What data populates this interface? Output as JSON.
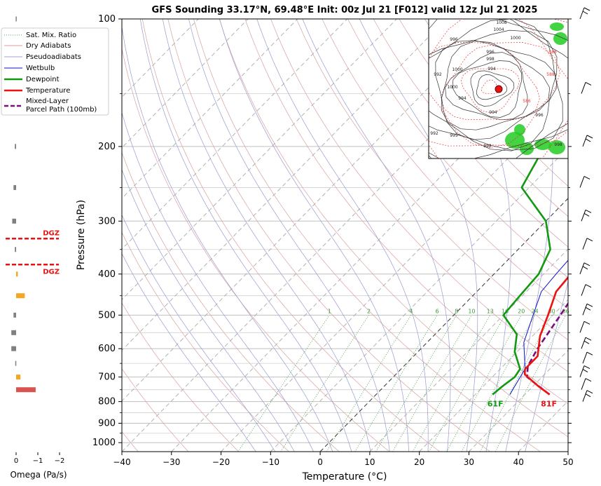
{
  "title": "GFS Sounding 33.17°N, 69.48°E Init: 00z Jul 21 [F012] valid 12z Jul 21 2025",
  "chart_data": {
    "type": "line",
    "title": "GFS Sounding 33.17°N, 69.48°E Init: 00z Jul 21 [F012] valid 12z Jul 21 2025",
    "xlabel": "Temperature (°C)",
    "ylabel": "Pressure (hPa)",
    "xlim": [
      -40,
      50
    ],
    "ylim": [
      1050,
      100
    ],
    "y_scale": "log",
    "grid": true,
    "x_ticks": [
      "−40",
      "−30",
      "−20",
      "−10",
      "0",
      "10",
      "20",
      "30",
      "40",
      "50"
    ],
    "y_ticks": [
      "100",
      "200",
      "300",
      "400",
      "500",
      "600",
      "700",
      "800",
      "900",
      "1000"
    ],
    "legend": {
      "position": "top-left",
      "entries": [
        "Sat. Mix. Ratio",
        "Dry Adiabats",
        "Pseudoadiabats",
        "Wetbulb",
        "Dewpoint",
        "Temperature",
        "Mixed-Layer",
        "Parcel Path (100mb)"
      ]
    },
    "mixing_ratio_labels": [
      "1",
      "2",
      "4",
      "6",
      "8",
      "10",
      "13",
      "16",
      "20",
      "24",
      "30",
      "36"
    ],
    "mixing_ratio_values": [
      1,
      2,
      4,
      6,
      8,
      10,
      13,
      16,
      20,
      24,
      30,
      36
    ],
    "surface_temperature_label": "81F",
    "surface_dewpoint_label": "61F",
    "colors": {
      "temperature": "#ee1111",
      "dewpoint": "#119911",
      "wetbulb": "#1111cc",
      "parcel": "#7a0f7a",
      "dgz": "#ee1111",
      "omega_gray": "#808080",
      "omega_orange": "#f5a623",
      "omega_red": "#d9534f"
    },
    "series": [
      {
        "name": "Temperature",
        "points": [
          [
            35.0,
            770
          ],
          [
            31.0,
            735
          ],
          [
            26.0,
            690
          ],
          [
            25.0,
            670
          ],
          [
            25.0,
            625
          ],
          [
            21.5,
            560
          ],
          [
            19.0,
            500
          ],
          [
            16.0,
            440
          ],
          [
            15.5,
            400
          ],
          [
            14.5,
            350
          ],
          [
            12.0,
            300
          ],
          [
            7.0,
            250
          ],
          [
            -0.5,
            200
          ],
          [
            -7.5,
            160
          ],
          [
            -10.5,
            140
          ],
          [
            -14.5,
            120
          ],
          [
            -17.0,
            110
          ],
          [
            -19.0,
            100
          ]
        ]
      },
      {
        "name": "Dewpoint",
        "points": [
          [
            23.5,
            770
          ],
          [
            23.8,
            740
          ],
          [
            24.5,
            700
          ],
          [
            24.0,
            670
          ],
          [
            19.5,
            610
          ],
          [
            16.5,
            555
          ],
          [
            10.0,
            500
          ],
          [
            9.5,
            450
          ],
          [
            9.0,
            400
          ],
          [
            6.5,
            350
          ],
          [
            0.0,
            300
          ],
          [
            -11.5,
            250
          ],
          [
            -15.0,
            200
          ],
          [
            -14.0,
            160
          ],
          [
            -14.0,
            150
          ],
          [
            -13.5,
            130
          ],
          [
            -12.5,
            120
          ],
          [
            -12.5,
            100
          ]
        ]
      },
      {
        "name": "Wetbulb",
        "points": [
          [
            27.0,
            770
          ],
          [
            26.5,
            745
          ],
          [
            25.0,
            670
          ],
          [
            19.5,
            580
          ],
          [
            16.0,
            500
          ],
          [
            13.0,
            440
          ],
          [
            12.5,
            400
          ],
          [
            12.0,
            350
          ],
          [
            10.0,
            300
          ],
          [
            4.5,
            250
          ],
          [
            -2.5,
            200
          ],
          [
            -8.0,
            160
          ]
        ]
      },
      {
        "name": "Mixed-Layer Parcel Path (100mb)",
        "points": [
          [
            35.0,
            770
          ],
          [
            30.5,
            730
          ],
          [
            27.0,
            700
          ],
          [
            25.0,
            660
          ],
          [
            23.5,
            600
          ],
          [
            21.5,
            500
          ],
          [
            20.0,
            440
          ],
          [
            18.5,
            400
          ],
          [
            16.0,
            350
          ],
          [
            13.5,
            300
          ],
          [
            10.0,
            250
          ],
          [
            4.0,
            200
          ],
          [
            -2.0,
            160
          ],
          [
            -5.0,
            140
          ],
          [
            -10.0,
            120
          ],
          [
            -12.0,
            110
          ],
          [
            -15.0,
            100
          ]
        ]
      }
    ],
    "omega_panel": {
      "xlabel": "Omega (Pa/s)",
      "x_ticks": [
        "0",
        "−1",
        "−2"
      ],
      "dgz_label": "DGZ",
      "dgz_levels_hpa": [
        330,
        380
      ],
      "bars": [
        {
          "p": 100,
          "value": 0.02,
          "color": "gray"
        },
        {
          "p": 200,
          "value": 0.06,
          "color": "gray"
        },
        {
          "p": 250,
          "value": 0.12,
          "color": "gray"
        },
        {
          "p": 300,
          "value": 0.18,
          "color": "gray"
        },
        {
          "p": 350,
          "value": 0.06,
          "color": "gray"
        },
        {
          "p": 400,
          "value": -0.08,
          "color": "orange"
        },
        {
          "p": 450,
          "value": -0.4,
          "color": "orange"
        },
        {
          "p": 500,
          "value": 0.12,
          "color": "gray"
        },
        {
          "p": 550,
          "value": 0.22,
          "color": "gray"
        },
        {
          "p": 600,
          "value": 0.22,
          "color": "gray"
        },
        {
          "p": 650,
          "value": 0.04,
          "color": "gray"
        },
        {
          "p": 700,
          "value": -0.2,
          "color": "orange"
        },
        {
          "p": 750,
          "value": -0.9,
          "color": "red"
        }
      ]
    },
    "wind_barbs_hpa": [
      100,
      150,
      200,
      250,
      300,
      350,
      400,
      450,
      500,
      550,
      600,
      650,
      700,
      750,
      800
    ],
    "inset_map": {
      "contour_labels": [
        "1008",
        "1004",
        "1000",
        "996",
        "996",
        "998",
        "994",
        "992",
        "1000",
        "588",
        "588",
        "586",
        "996",
        "994",
        "995",
        "998",
        "1000",
        "992",
        "994",
        "998"
      ]
    }
  }
}
